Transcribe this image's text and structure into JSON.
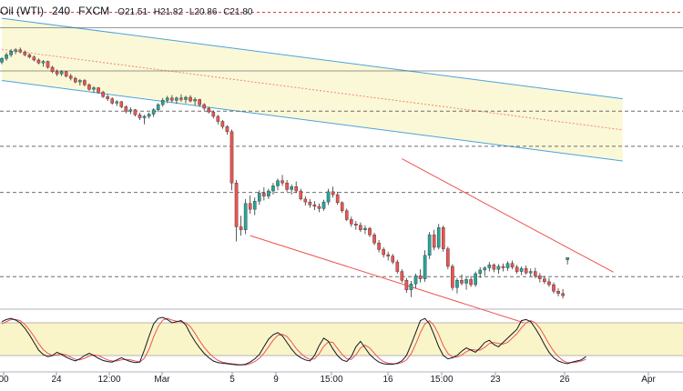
{
  "header": {
    "symbol": "Oil (WTI)",
    "interval": "240",
    "source": "FXCM",
    "open": "O21.51",
    "high": "H21.82",
    "low": "L20.86",
    "close": "C21.80"
  },
  "colors": {
    "up": "#26a69a",
    "down": "#ef5350",
    "channel_upper": "#f7f2b7",
    "channel_blue": "#4aa3df",
    "down_channel": "#ef5350",
    "stoch_k": "#131722",
    "stoch_d": "#ef5350",
    "stoch_band": "#faf5c8",
    "resistance_dash": "#d32f2f",
    "level_dash": "#555555",
    "grid": "#e0e3eb"
  },
  "chart_data": {
    "type": "candlestick",
    "title": "Oil (WTI) 240 FXCM",
    "x_tick_labels": [
      "00",
      "24",
      "12:00",
      "Mar",
      "5",
      "9",
      "15:00",
      "16",
      "15:00",
      "23",
      "26",
      "Apr"
    ],
    "candles": [
      [
        48.5,
        49.2,
        48.2,
        49.0
      ],
      [
        49.0,
        49.8,
        48.7,
        49.5
      ],
      [
        49.5,
        50.3,
        49.2,
        50.0
      ],
      [
        50.0,
        50.4,
        49.6,
        50.2
      ],
      [
        50.2,
        50.5,
        49.7,
        49.9
      ],
      [
        49.9,
        50.1,
        49.3,
        49.5
      ],
      [
        49.5,
        49.7,
        49.0,
        49.2
      ],
      [
        49.2,
        49.4,
        48.6,
        48.8
      ],
      [
        48.8,
        49.0,
        48.2,
        48.4
      ],
      [
        48.4,
        48.8,
        47.9,
        48.6
      ],
      [
        48.6,
        48.7,
        47.6,
        47.8
      ],
      [
        47.8,
        48.0,
        47.0,
        47.2
      ],
      [
        47.2,
        47.5,
        46.6,
        46.9
      ],
      [
        46.9,
        47.4,
        46.6,
        47.2
      ],
      [
        47.2,
        47.3,
        46.4,
        46.6
      ],
      [
        46.6,
        46.9,
        46.0,
        46.3
      ],
      [
        46.3,
        46.5,
        45.6,
        45.8
      ],
      [
        45.8,
        46.2,
        45.3,
        46.0
      ],
      [
        46.0,
        46.2,
        45.2,
        45.4
      ],
      [
        45.4,
        45.6,
        44.6,
        44.8
      ],
      [
        44.8,
        45.2,
        44.3,
        45.0
      ],
      [
        45.0,
        45.1,
        44.2,
        44.4
      ],
      [
        44.4,
        44.6,
        43.6,
        43.8
      ],
      [
        43.8,
        44.1,
        43.2,
        43.5
      ],
      [
        43.5,
        43.7,
        42.7,
        42.9
      ],
      [
        42.9,
        43.3,
        42.5,
        43.1
      ],
      [
        43.1,
        43.2,
        42.2,
        42.4
      ],
      [
        42.4,
        42.6,
        41.5,
        41.8
      ],
      [
        41.8,
        42.3,
        41.4,
        42.0
      ],
      [
        42.0,
        42.1,
        41.1,
        41.3
      ],
      [
        41.3,
        41.6,
        40.6,
        40.9
      ],
      [
        40.9,
        41.3,
        40.0,
        41.1
      ],
      [
        41.1,
        41.6,
        40.8,
        41.4
      ],
      [
        41.4,
        42.2,
        41.0,
        42.0
      ],
      [
        42.0,
        42.9,
        41.7,
        42.7
      ],
      [
        42.7,
        43.6,
        42.4,
        43.3
      ],
      [
        43.3,
        43.9,
        42.9,
        43.6
      ],
      [
        43.6,
        44.0,
        43.0,
        43.3
      ],
      [
        43.3,
        43.8,
        42.8,
        43.6
      ],
      [
        43.6,
        44.1,
        43.1,
        43.4
      ],
      [
        43.4,
        43.9,
        42.9,
        43.7
      ],
      [
        43.7,
        44.0,
        43.0,
        43.2
      ],
      [
        43.2,
        43.7,
        42.6,
        43.4
      ],
      [
        43.4,
        43.5,
        42.4,
        42.7
      ],
      [
        42.7,
        42.9,
        41.9,
        42.2
      ],
      [
        42.2,
        42.4,
        41.5,
        41.7
      ],
      [
        41.7,
        41.9,
        40.8,
        41.1
      ],
      [
        41.1,
        41.3,
        40.0,
        40.4
      ],
      [
        40.4,
        40.6,
        39.4,
        39.7
      ],
      [
        39.7,
        39.9,
        38.6,
        39.0
      ],
      [
        39.0,
        39.3,
        31.0,
        32.0
      ],
      [
        32.0,
        32.4,
        24.0,
        26.0
      ],
      [
        26.0,
        27.5,
        24.8,
        25.6
      ],
      [
        25.6,
        29.8,
        25.0,
        29.2
      ],
      [
        29.2,
        30.3,
        27.8,
        28.4
      ],
      [
        28.4,
        30.0,
        27.6,
        29.5
      ],
      [
        29.5,
        31.0,
        29.0,
        30.6
      ],
      [
        30.6,
        31.4,
        29.6,
        30.2
      ],
      [
        30.2,
        31.2,
        29.8,
        30.9
      ],
      [
        30.9,
        32.0,
        30.4,
        31.6
      ],
      [
        31.6,
        32.6,
        31.0,
        32.3
      ],
      [
        32.3,
        33.1,
        31.6,
        32.0
      ],
      [
        32.0,
        32.4,
        30.8,
        31.1
      ],
      [
        31.1,
        31.8,
        30.4,
        31.5
      ],
      [
        31.5,
        32.2,
        30.6,
        30.9
      ],
      [
        30.9,
        31.2,
        29.6,
        29.8
      ],
      [
        29.8,
        30.2,
        28.9,
        29.4
      ],
      [
        29.4,
        29.8,
        28.6,
        29.0
      ],
      [
        29.0,
        29.5,
        28.3,
        28.8
      ],
      [
        28.8,
        29.2,
        28.0,
        28.5
      ],
      [
        28.5,
        29.7,
        28.2,
        29.4
      ],
      [
        29.4,
        31.2,
        29.0,
        30.8
      ],
      [
        30.8,
        31.5,
        30.0,
        30.4
      ],
      [
        30.4,
        30.8,
        29.0,
        29.3
      ],
      [
        29.3,
        29.5,
        27.9,
        28.2
      ],
      [
        28.2,
        28.5,
        26.8,
        27.0
      ],
      [
        27.0,
        27.4,
        26.0,
        26.4
      ],
      [
        26.4,
        26.8,
        25.6,
        26.2
      ],
      [
        26.2,
        26.6,
        25.3,
        25.6
      ],
      [
        25.6,
        26.2,
        25.0,
        25.8
      ],
      [
        25.8,
        26.0,
        24.6,
        24.9
      ],
      [
        24.9,
        25.2,
        23.5,
        23.8
      ],
      [
        23.8,
        24.2,
        22.5,
        22.9
      ],
      [
        22.9,
        23.2,
        21.8,
        22.2
      ],
      [
        22.2,
        22.6,
        21.4,
        22.0
      ],
      [
        22.0,
        22.3,
        20.9,
        21.2
      ],
      [
        21.2,
        21.5,
        19.6,
        19.9
      ],
      [
        19.9,
        20.2,
        18.4,
        18.7
      ],
      [
        18.7,
        19.0,
        17.0,
        17.4
      ],
      [
        17.4,
        18.6,
        16.4,
        18.2
      ],
      [
        18.2,
        19.6,
        17.6,
        19.3
      ],
      [
        19.3,
        20.2,
        18.4,
        18.9
      ],
      [
        18.9,
        22.8,
        18.5,
        22.1
      ],
      [
        22.1,
        25.3,
        21.6,
        24.9
      ],
      [
        24.9,
        25.6,
        22.8,
        23.2
      ],
      [
        23.2,
        26.4,
        22.9,
        25.9
      ],
      [
        25.9,
        26.2,
        22.6,
        23.0
      ],
      [
        23.0,
        23.3,
        20.2,
        20.6
      ],
      [
        20.6,
        20.9,
        17.3,
        17.7
      ],
      [
        17.7,
        19.0,
        16.9,
        18.7
      ],
      [
        18.7,
        19.5,
        18.0,
        18.3
      ],
      [
        18.3,
        19.1,
        17.4,
        18.8
      ],
      [
        18.8,
        19.3,
        17.8,
        18.1
      ],
      [
        18.1,
        19.9,
        17.8,
        19.6
      ],
      [
        19.6,
        20.5,
        19.0,
        20.1
      ],
      [
        20.1,
        20.6,
        19.3,
        20.4
      ],
      [
        20.4,
        21.2,
        19.9,
        20.8
      ],
      [
        20.8,
        21.0,
        19.8,
        20.2
      ],
      [
        20.2,
        20.9,
        19.6,
        20.6
      ],
      [
        20.6,
        21.0,
        19.9,
        20.4
      ],
      [
        20.4,
        21.3,
        20.0,
        21.0
      ],
      [
        21.0,
        21.4,
        20.2,
        20.5
      ],
      [
        20.5,
        20.8,
        19.6,
        19.9
      ],
      [
        19.9,
        20.6,
        19.4,
        20.3
      ],
      [
        20.3,
        20.7,
        19.5,
        19.7
      ],
      [
        19.7,
        20.3,
        19.2,
        19.9
      ],
      [
        19.9,
        20.4,
        19.0,
        19.3
      ],
      [
        19.3,
        19.7,
        18.4,
        18.9
      ],
      [
        18.9,
        19.3,
        18.2,
        18.5
      ],
      [
        18.5,
        19.0,
        17.8,
        18.1
      ],
      [
        18.1,
        18.4,
        16.9,
        17.2
      ],
      [
        17.2,
        17.6,
        16.5,
        16.9
      ],
      [
        16.9,
        17.5,
        16.2,
        16.6
      ],
      [
        21.51,
        21.82,
        20.86,
        21.8
      ]
    ],
    "last_candle_note": "final candle uses the OHLC values printed in the header",
    "y_range": [
      15,
      56
    ],
    "horizontal_levels": [
      53.2,
      47.3,
      41.8,
      37.0,
      30.7,
      19.2
    ],
    "resistance_level": 55.3,
    "channels": {
      "upper_band": {
        "from": [
          0,
          54.5
        ],
        "to": [
          135,
          43.5
        ],
        "lower_from": [
          0,
          46.0
        ],
        "lower_to": [
          135,
          35.0
        ]
      },
      "down_channel": {
        "upper_from": [
          87,
          35.3
        ],
        "upper_to": [
          133,
          19.8
        ],
        "lower_from": [
          54,
          24.8
        ],
        "lower_to": [
          118,
          12.0
        ]
      }
    },
    "stochastic": {
      "range": [
        0,
        100
      ],
      "band": [
        20,
        80
      ],
      "k": [
        82,
        86,
        88,
        85,
        80,
        70,
        58,
        44,
        30,
        22,
        18,
        20,
        26,
        22,
        17,
        13,
        10,
        14,
        20,
        24,
        20,
        15,
        11,
        9,
        8,
        12,
        16,
        12,
        9,
        7,
        8,
        30,
        55,
        78,
        88,
        90,
        86,
        80,
        82,
        84,
        76,
        60,
        46,
        34,
        24,
        16,
        10,
        7,
        6,
        5,
        4,
        3,
        3,
        4,
        8,
        14,
        22,
        36,
        50,
        58,
        62,
        56,
        44,
        32,
        22,
        16,
        12,
        10,
        20,
        38,
        52,
        46,
        32,
        20,
        12,
        9,
        18,
        36,
        46,
        34,
        22,
        14,
        8,
        5,
        4,
        4,
        6,
        10,
        20,
        40,
        62,
        84,
        88,
        78,
        58,
        36,
        20,
        14,
        16,
        20,
        28,
        34,
        30,
        26,
        34,
        44,
        48,
        40,
        36,
        44,
        52,
        60,
        68,
        84,
        86,
        82,
        70,
        56,
        40,
        26,
        16,
        10,
        7,
        5,
        8,
        10,
        12,
        18
      ],
      "d": [
        78,
        82,
        86,
        86,
        84,
        77,
        67,
        55,
        42,
        31,
        24,
        20,
        21,
        23,
        21,
        17,
        13,
        12,
        15,
        19,
        21,
        20,
        16,
        12,
        10,
        10,
        12,
        13,
        12,
        10,
        8,
        15,
        31,
        54,
        73,
        85,
        88,
        85,
        83,
        82,
        80,
        73,
        61,
        47,
        35,
        25,
        17,
        11,
        8,
        6,
        5,
        4,
        3,
        3,
        5,
        9,
        15,
        24,
        36,
        48,
        57,
        59,
        55,
        45,
        33,
        24,
        17,
        13,
        14,
        23,
        37,
        45,
        44,
        33,
        22,
        14,
        13,
        21,
        34,
        39,
        34,
        24,
        15,
        9,
        6,
        5,
        5,
        7,
        12,
        23,
        41,
        62,
        78,
        84,
        75,
        58,
        38,
        24,
        17,
        17,
        21,
        27,
        31,
        30,
        30,
        35,
        42,
        44,
        42,
        41,
        44,
        52,
        60,
        71,
        80,
        84,
        80,
        70,
        56,
        41,
        28,
        18,
        11,
        7,
        7,
        8,
        10,
        13
      ]
    }
  }
}
